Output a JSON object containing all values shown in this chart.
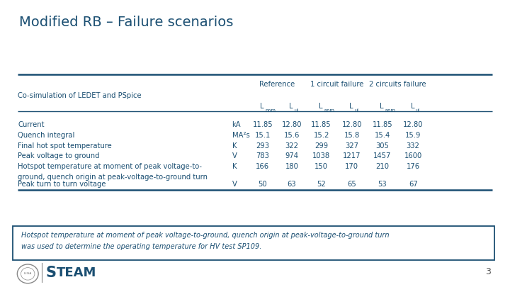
{
  "title": "Modified RB – Failure scenarios",
  "title_color": "#1B4F72",
  "title_fontsize": 14,
  "bg_color": "#FFFFFF",
  "table_header_group": [
    "Reference",
    "1 circuit failure",
    "2 circuits failure"
  ],
  "col_label": "Co-simulation of LEDET and PSpice",
  "rows": [
    {
      "label": "Current",
      "unit": "kA",
      "vals": [
        "11.85",
        "12.80",
        "11.85",
        "12.80",
        "11.85",
        "12.80"
      ]
    },
    {
      "label": "Quench integral",
      "unit": "MA²s",
      "vals": [
        "15.1",
        "15.6",
        "15.2",
        "15.8",
        "15.4",
        "15.9"
      ]
    },
    {
      "label": "Final hot spot temperature",
      "unit": "K",
      "vals": [
        "293",
        "322",
        "299",
        "327",
        "305",
        "332"
      ]
    },
    {
      "label": "Peak voltage to ground",
      "unit": "V",
      "vals": [
        "783",
        "974",
        "1038",
        "1217",
        "1457",
        "1600"
      ]
    },
    {
      "label": "Hotspot temperature at moment of peak voltage-to-\nground, quench origin at peak-voltage-to-ground turn",
      "unit": "K",
      "vals": [
        "166",
        "180",
        "150",
        "170",
        "210",
        "176"
      ]
    },
    {
      "label": "Peak turn to turn voltage",
      "unit": "V",
      "vals": [
        "50",
        "63",
        "52",
        "65",
        "53",
        "67"
      ]
    }
  ],
  "note_line1": "Hotspot temperature at moment of peak voltage-to-ground, quench origin at peak-voltage-to-ground turn",
  "note_line2": "was used to determine the operating temperature for HV test SP109.",
  "note_color": "#1B4F72",
  "table_color": "#1B4F72",
  "page_num": "3"
}
